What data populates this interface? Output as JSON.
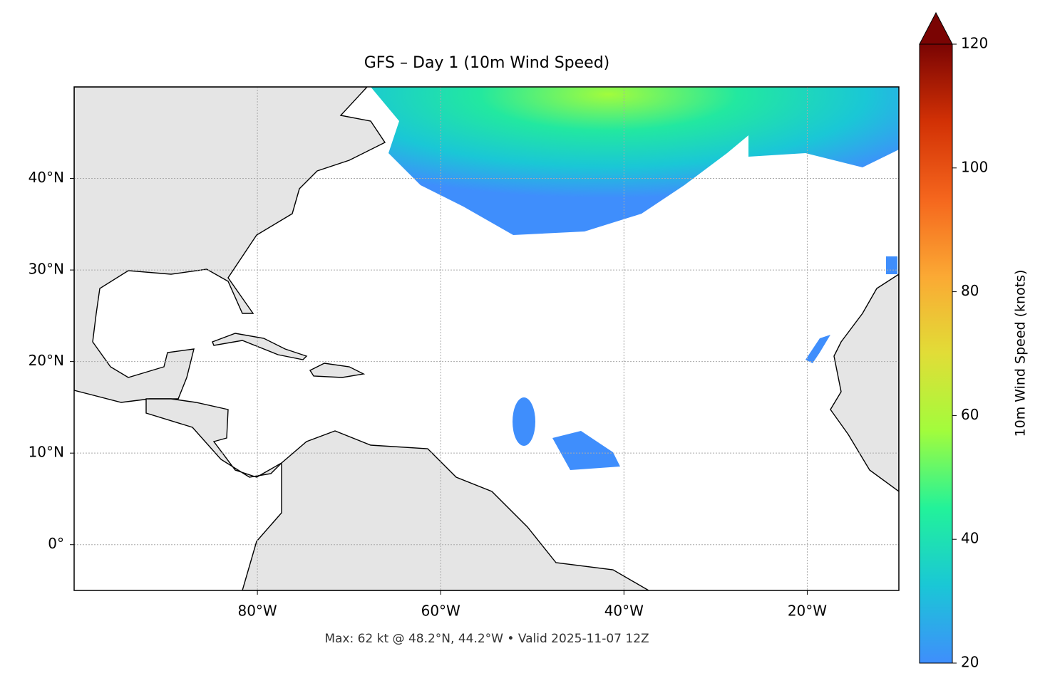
{
  "chart_data": {
    "type": "map",
    "title": "GFS – Day 1 (10m Wind Speed)",
    "annotation": "Max: 62 kt @ 48.2°N, 44.2°W • Valid 2025-11-07 12Z",
    "xlim": [
      -100,
      -10
    ],
    "ylim": [
      -5,
      50
    ],
    "xticks": [
      {
        "value": -80,
        "label": "80°W"
      },
      {
        "value": -60,
        "label": "60°W"
      },
      {
        "value": -40,
        "label": "40°W"
      },
      {
        "value": -20,
        "label": "20°W"
      }
    ],
    "yticks": [
      {
        "value": 0,
        "label": "0°"
      },
      {
        "value": 10,
        "label": "10°N"
      },
      {
        "value": 20,
        "label": "20°N"
      },
      {
        "value": 30,
        "label": "30°N"
      },
      {
        "value": 40,
        "label": "40°N"
      }
    ],
    "grid": true,
    "colorbar": {
      "label": "10m Wind Speed (knots)",
      "lim": [
        20,
        120
      ],
      "ticks": [
        20,
        40,
        60,
        80,
        100,
        120
      ],
      "colors": [
        "#3f8efc",
        "#1ac7d6",
        "#22f29a",
        "#a2fc3c",
        "#e1dd37",
        "#fba934",
        "#f5661d",
        "#d23105",
        "#7a0403"
      ]
    }
  }
}
